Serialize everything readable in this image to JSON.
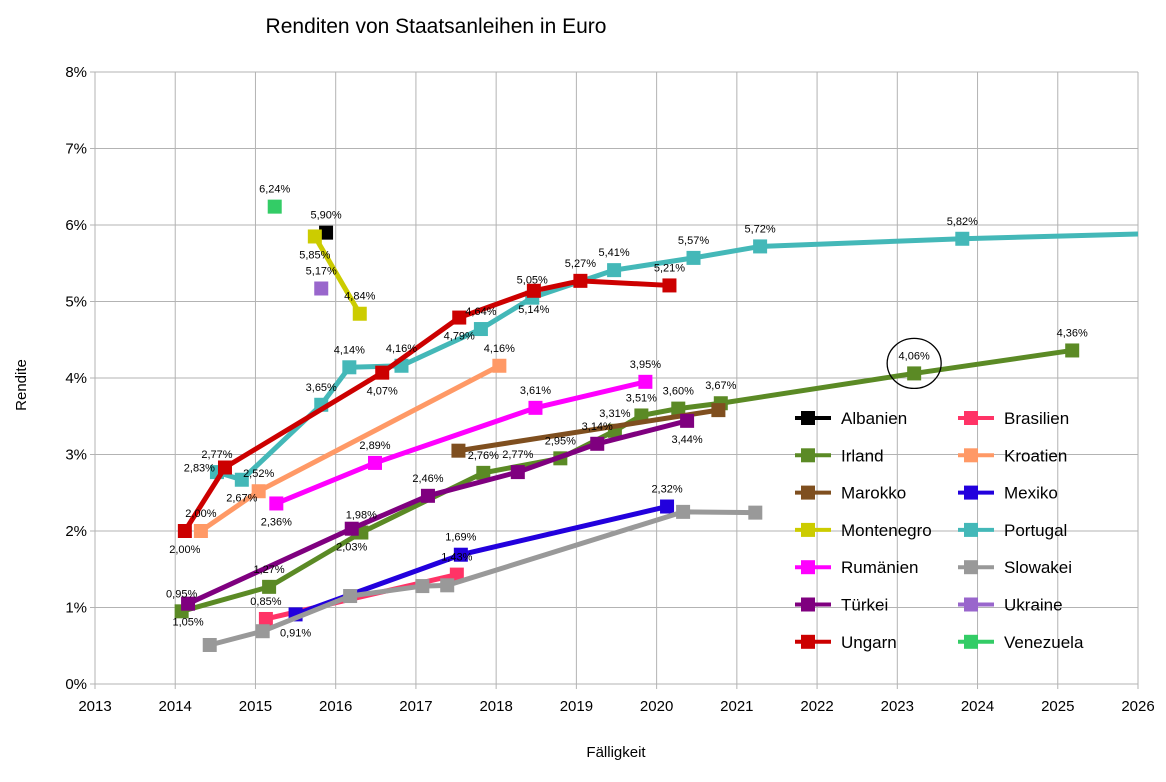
{
  "chart_data": {
    "type": "line",
    "title": "Renditen von Staatsanleihen in Euro",
    "xlabel": "Fälligkeit",
    "ylabel": "Rendite",
    "xlim": [
      2013,
      2026
    ],
    "ylim": [
      0,
      8
    ],
    "x_ticks": [
      "2013",
      "2014",
      "2015",
      "2016",
      "2017",
      "2018",
      "2019",
      "2020",
      "2021",
      "2022",
      "2023",
      "2024",
      "2025",
      "2026"
    ],
    "y_ticks": [
      "0%",
      "1%",
      "2%",
      "3%",
      "4%",
      "5%",
      "6%",
      "7%",
      "8%"
    ],
    "grid": true,
    "legend_position": "right-inside",
    "series": [
      {
        "name": "Albanien",
        "color": "#000000",
        "points": [
          [
            2015.88,
            5.9
          ]
        ],
        "labels": [
          "5,90%"
        ]
      },
      {
        "name": "Brasilien",
        "color": "#ff3366",
        "points": [
          [
            2015.13,
            0.85
          ],
          [
            2017.51,
            1.43
          ]
        ],
        "labels": [
          "0,85%",
          "1,43%"
        ]
      },
      {
        "name": "Irland",
        "color": "#5b8a25",
        "points": [
          [
            2014.08,
            0.95
          ],
          [
            2015.17,
            1.27
          ],
          [
            2016.32,
            1.98
          ],
          [
            2017.84,
            2.76
          ],
          [
            2018.8,
            2.95
          ],
          [
            2019.48,
            3.31
          ],
          [
            2019.81,
            3.51
          ],
          [
            2020.27,
            3.6
          ],
          [
            2020.8,
            3.67
          ],
          [
            2023.21,
            4.06
          ],
          [
            2025.18,
            4.36
          ]
        ],
        "labels": [
          "0,95%",
          "1,27%",
          "1,98%",
          "2,76%",
          "2,95%",
          "3,31%",
          "3,51%",
          "3,60%",
          "3,67%",
          "4,06%",
          "4,36%"
        ]
      },
      {
        "name": "Kroatien",
        "color": "#ff9966",
        "points": [
          [
            2014.32,
            2.0
          ],
          [
            2015.04,
            2.52
          ],
          [
            2018.04,
            4.16
          ]
        ],
        "labels": [
          "2,00%",
          "2,52%",
          "4,16%"
        ]
      },
      {
        "name": "Marokko",
        "color": "#7f4f1f",
        "points": [
          [
            2017.53,
            3.05
          ],
          [
            2020.77,
            3.58
          ]
        ],
        "labels": [
          null,
          null
        ]
      },
      {
        "name": "Mexiko",
        "color": "#2200dd",
        "points": [
          [
            2015.5,
            0.91
          ],
          [
            2017.56,
            1.69
          ],
          [
            2020.13,
            2.32
          ]
        ],
        "labels": [
          "0,91%",
          "1,69%",
          "2,32%"
        ]
      },
      {
        "name": "Montenegro",
        "color": "#cccc00",
        "points": [
          [
            2015.74,
            5.85
          ],
          [
            2016.3,
            4.84
          ]
        ],
        "labels": [
          "5,85%",
          "4,84%"
        ]
      },
      {
        "name": "Portugal",
        "color": "#44b8b8",
        "points": [
          [
            2014.52,
            2.77
          ],
          [
            2014.83,
            2.67
          ],
          [
            2015.82,
            3.65
          ],
          [
            2016.17,
            4.14
          ],
          [
            2016.82,
            4.16
          ],
          [
            2017.81,
            4.64
          ],
          [
            2018.45,
            5.05
          ],
          [
            2019.47,
            5.41
          ],
          [
            2020.46,
            5.57
          ],
          [
            2021.29,
            5.72
          ],
          [
            2023.81,
            5.82
          ],
          [
            2026.6,
            5.9
          ]
        ],
        "labels": [
          "2,77%",
          "2,67%",
          "3,65%",
          "4,14%",
          "4,16%",
          "4,64%",
          "5,05%",
          "5,41%",
          "5,57%",
          "5,72%",
          "5,82%",
          null
        ]
      },
      {
        "name": "Rumänien",
        "color": "#ff00ff",
        "points": [
          [
            2015.26,
            2.36
          ],
          [
            2016.49,
            2.89
          ],
          [
            2018.49,
            3.61
          ],
          [
            2019.86,
            3.95
          ]
        ],
        "labels": [
          "2,36%",
          "2,89%",
          "3,61%",
          "3,95%"
        ]
      },
      {
        "name": "Slowakei",
        "color": "#999999",
        "points": [
          [
            2014.43,
            0.51
          ],
          [
            2015.09,
            0.69
          ],
          [
            2016.18,
            1.15
          ],
          [
            2017.08,
            1.28
          ],
          [
            2017.39,
            1.29
          ],
          [
            2020.33,
            2.25
          ],
          [
            2021.23,
            2.24
          ]
        ],
        "labels": [
          null,
          null,
          null,
          null,
          null,
          null,
          null
        ]
      },
      {
        "name": "Türkei",
        "color": "#7f007f",
        "points": [
          [
            2014.16,
            1.05
          ],
          [
            2016.2,
            2.03
          ],
          [
            2017.15,
            2.46
          ],
          [
            2018.27,
            2.77
          ],
          [
            2019.26,
            3.14
          ],
          [
            2020.38,
            3.44
          ]
        ],
        "labels": [
          "1,05%",
          "2,03%",
          "2,46%",
          "2,77%",
          "3,14%",
          "3,44%"
        ]
      },
      {
        "name": "Ukraine",
        "color": "#9966cc",
        "points": [
          [
            2015.82,
            5.17
          ]
        ],
        "labels": [
          "5,17%"
        ]
      },
      {
        "name": "Ungarn",
        "color": "#cc0000",
        "points": [
          [
            2014.12,
            2.0
          ],
          [
            2014.62,
            2.83
          ],
          [
            2016.58,
            4.07
          ],
          [
            2017.54,
            4.79
          ],
          [
            2018.47,
            5.14
          ],
          [
            2019.05,
            5.27
          ],
          [
            2020.16,
            5.21
          ]
        ],
        "labels": [
          "2,00%",
          "2,83%",
          "4,07%",
          "4,79%",
          "5,14%",
          "5,27%",
          "5,21%"
        ]
      },
      {
        "name": "Venezuela",
        "color": "#33cc66",
        "points": [
          [
            2015.24,
            6.24
          ]
        ],
        "labels": [
          "6,24%"
        ]
      }
    ],
    "annotations": [
      {
        "type": "circle",
        "x": 2023.21,
        "y": 4.06
      }
    ]
  }
}
